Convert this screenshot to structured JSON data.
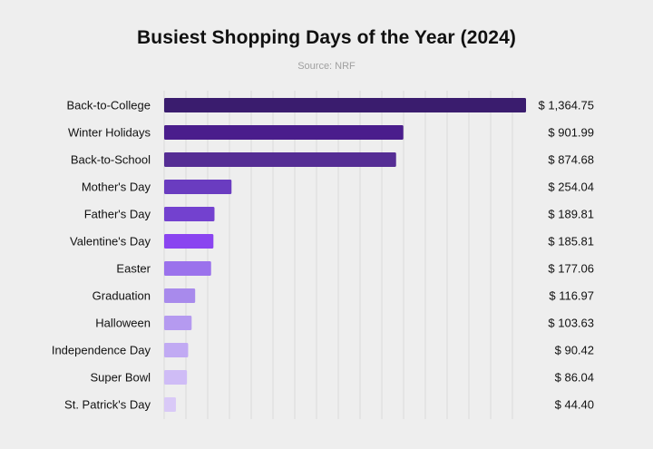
{
  "chart_data": {
    "type": "bar",
    "orientation": "horizontal",
    "title": "Busiest Shopping Days of the Year (2024)",
    "subtitle": "Source: NRF",
    "categories": [
      "Back-to-College",
      "Winter Holidays",
      "Back-to-School",
      "Mother's Day",
      "Father's Day",
      "Valentine's Day",
      "Easter",
      "Graduation",
      "Halloween",
      "Independence Day",
      "Super Bowl",
      "St. Patrick's Day"
    ],
    "values": [
      1364.75,
      901.99,
      874.68,
      254.04,
      189.81,
      185.81,
      177.06,
      116.97,
      103.63,
      90.42,
      86.04,
      44.4
    ],
    "value_labels": [
      "$ 1,364.75",
      "$ 901.99",
      "$ 874.68",
      "$ 254.04",
      "$ 189.81",
      "$ 185.81",
      "$ 177.06",
      "$ 116.97",
      "$ 103.63",
      "$ 90.42",
      "$ 86.04",
      "$ 44.40"
    ],
    "colors": [
      "#3a1c6e",
      "#4a1d8c",
      "#552d94",
      "#6a3cc0",
      "#7341cf",
      "#8a44f0",
      "#9b72ec",
      "#a88aec",
      "#b59af0",
      "#c1aaf3",
      "#cfbcf6",
      "#d9c9f7"
    ],
    "grid": true,
    "legend": "none",
    "xlabel": "",
    "ylabel": ""
  }
}
